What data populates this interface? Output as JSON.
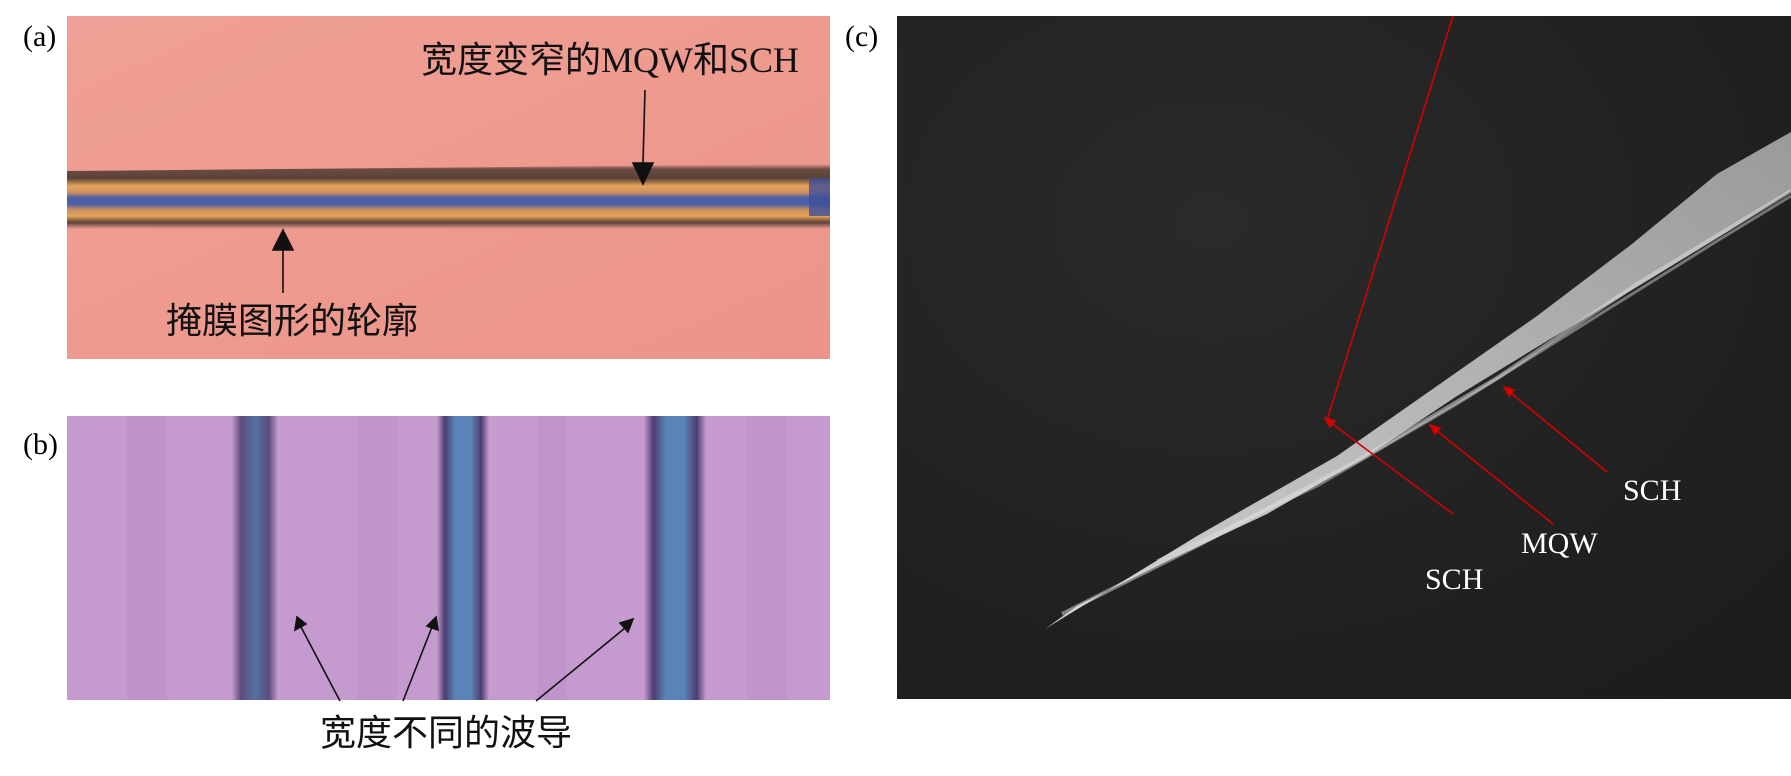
{
  "panels": {
    "a": {
      "label": "(a)",
      "annotations": {
        "top": "宽度变窄的MQW和SCH",
        "bottom": "掩膜图形的轮廓"
      },
      "colors": {
        "background": "#ee9a90",
        "stripe_outer": "#5a4238",
        "stripe_orange": "#e8a45a",
        "stripe_core": "#4d5fa8"
      }
    },
    "b": {
      "label": "(b)",
      "annotations": {
        "bottom": "宽度不同的波导"
      },
      "colors": {
        "background": "#c498d0",
        "waveguide_dark": "#4a3a6c",
        "waveguide_core": "#5a84b8"
      }
    },
    "c": {
      "label": "(c)",
      "annotations": {
        "sch_right": "SCH",
        "mqw": "MQW",
        "sch_left": "SCH"
      },
      "colors": {
        "background": "#232323",
        "structure": "#bdbdbd",
        "arrow": "#d40000"
      }
    }
  }
}
